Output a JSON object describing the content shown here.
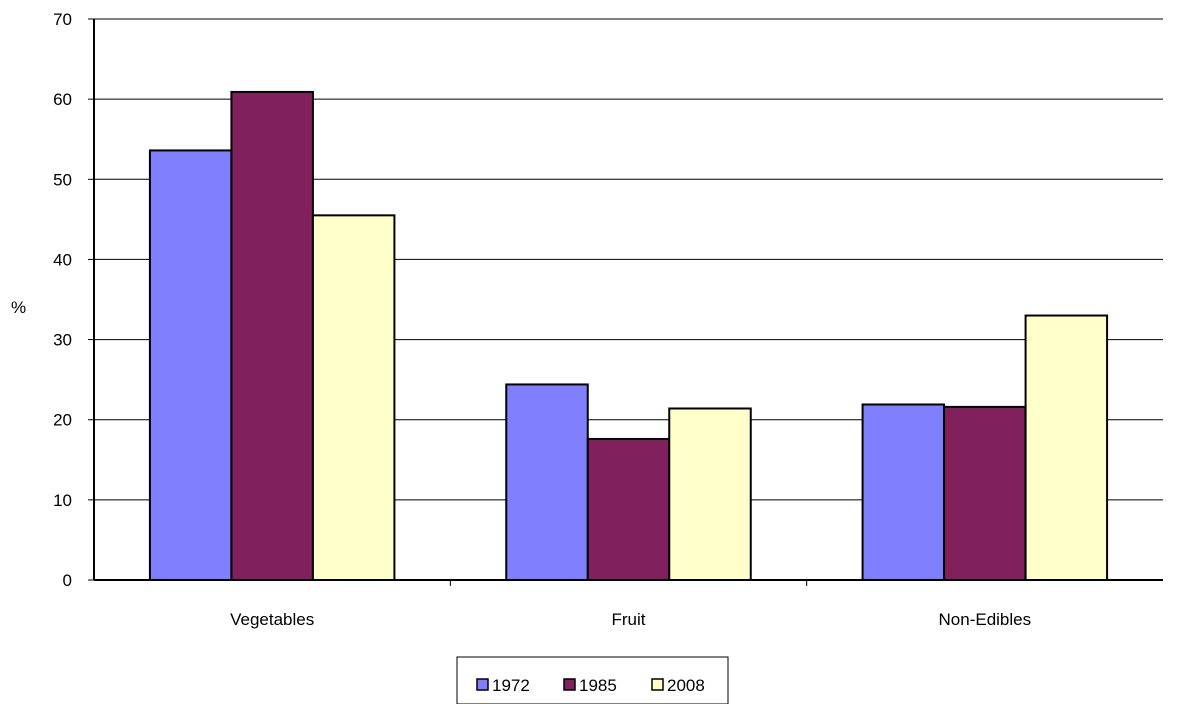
{
  "chart_data": {
    "type": "bar",
    "title": "",
    "xlabel": "",
    "ylabel": "%",
    "categories": [
      "Vegetables",
      "Fruit",
      "Non-Edibles"
    ],
    "ylim": [
      0,
      70
    ],
    "yticks": [
      0,
      10,
      20,
      30,
      40,
      50,
      60,
      70
    ],
    "grid": true,
    "legend_position": "bottom-center",
    "series": [
      {
        "name": "1972",
        "color": "#8080ff",
        "values": [
          53.6,
          24.4,
          21.9
        ]
      },
      {
        "name": "1985",
        "color": "#80205c",
        "values": [
          60.9,
          17.6,
          21.6
        ]
      },
      {
        "name": "2008",
        "color": "#ffffcc",
        "values": [
          45.5,
          21.4,
          33.0
        ]
      }
    ]
  }
}
